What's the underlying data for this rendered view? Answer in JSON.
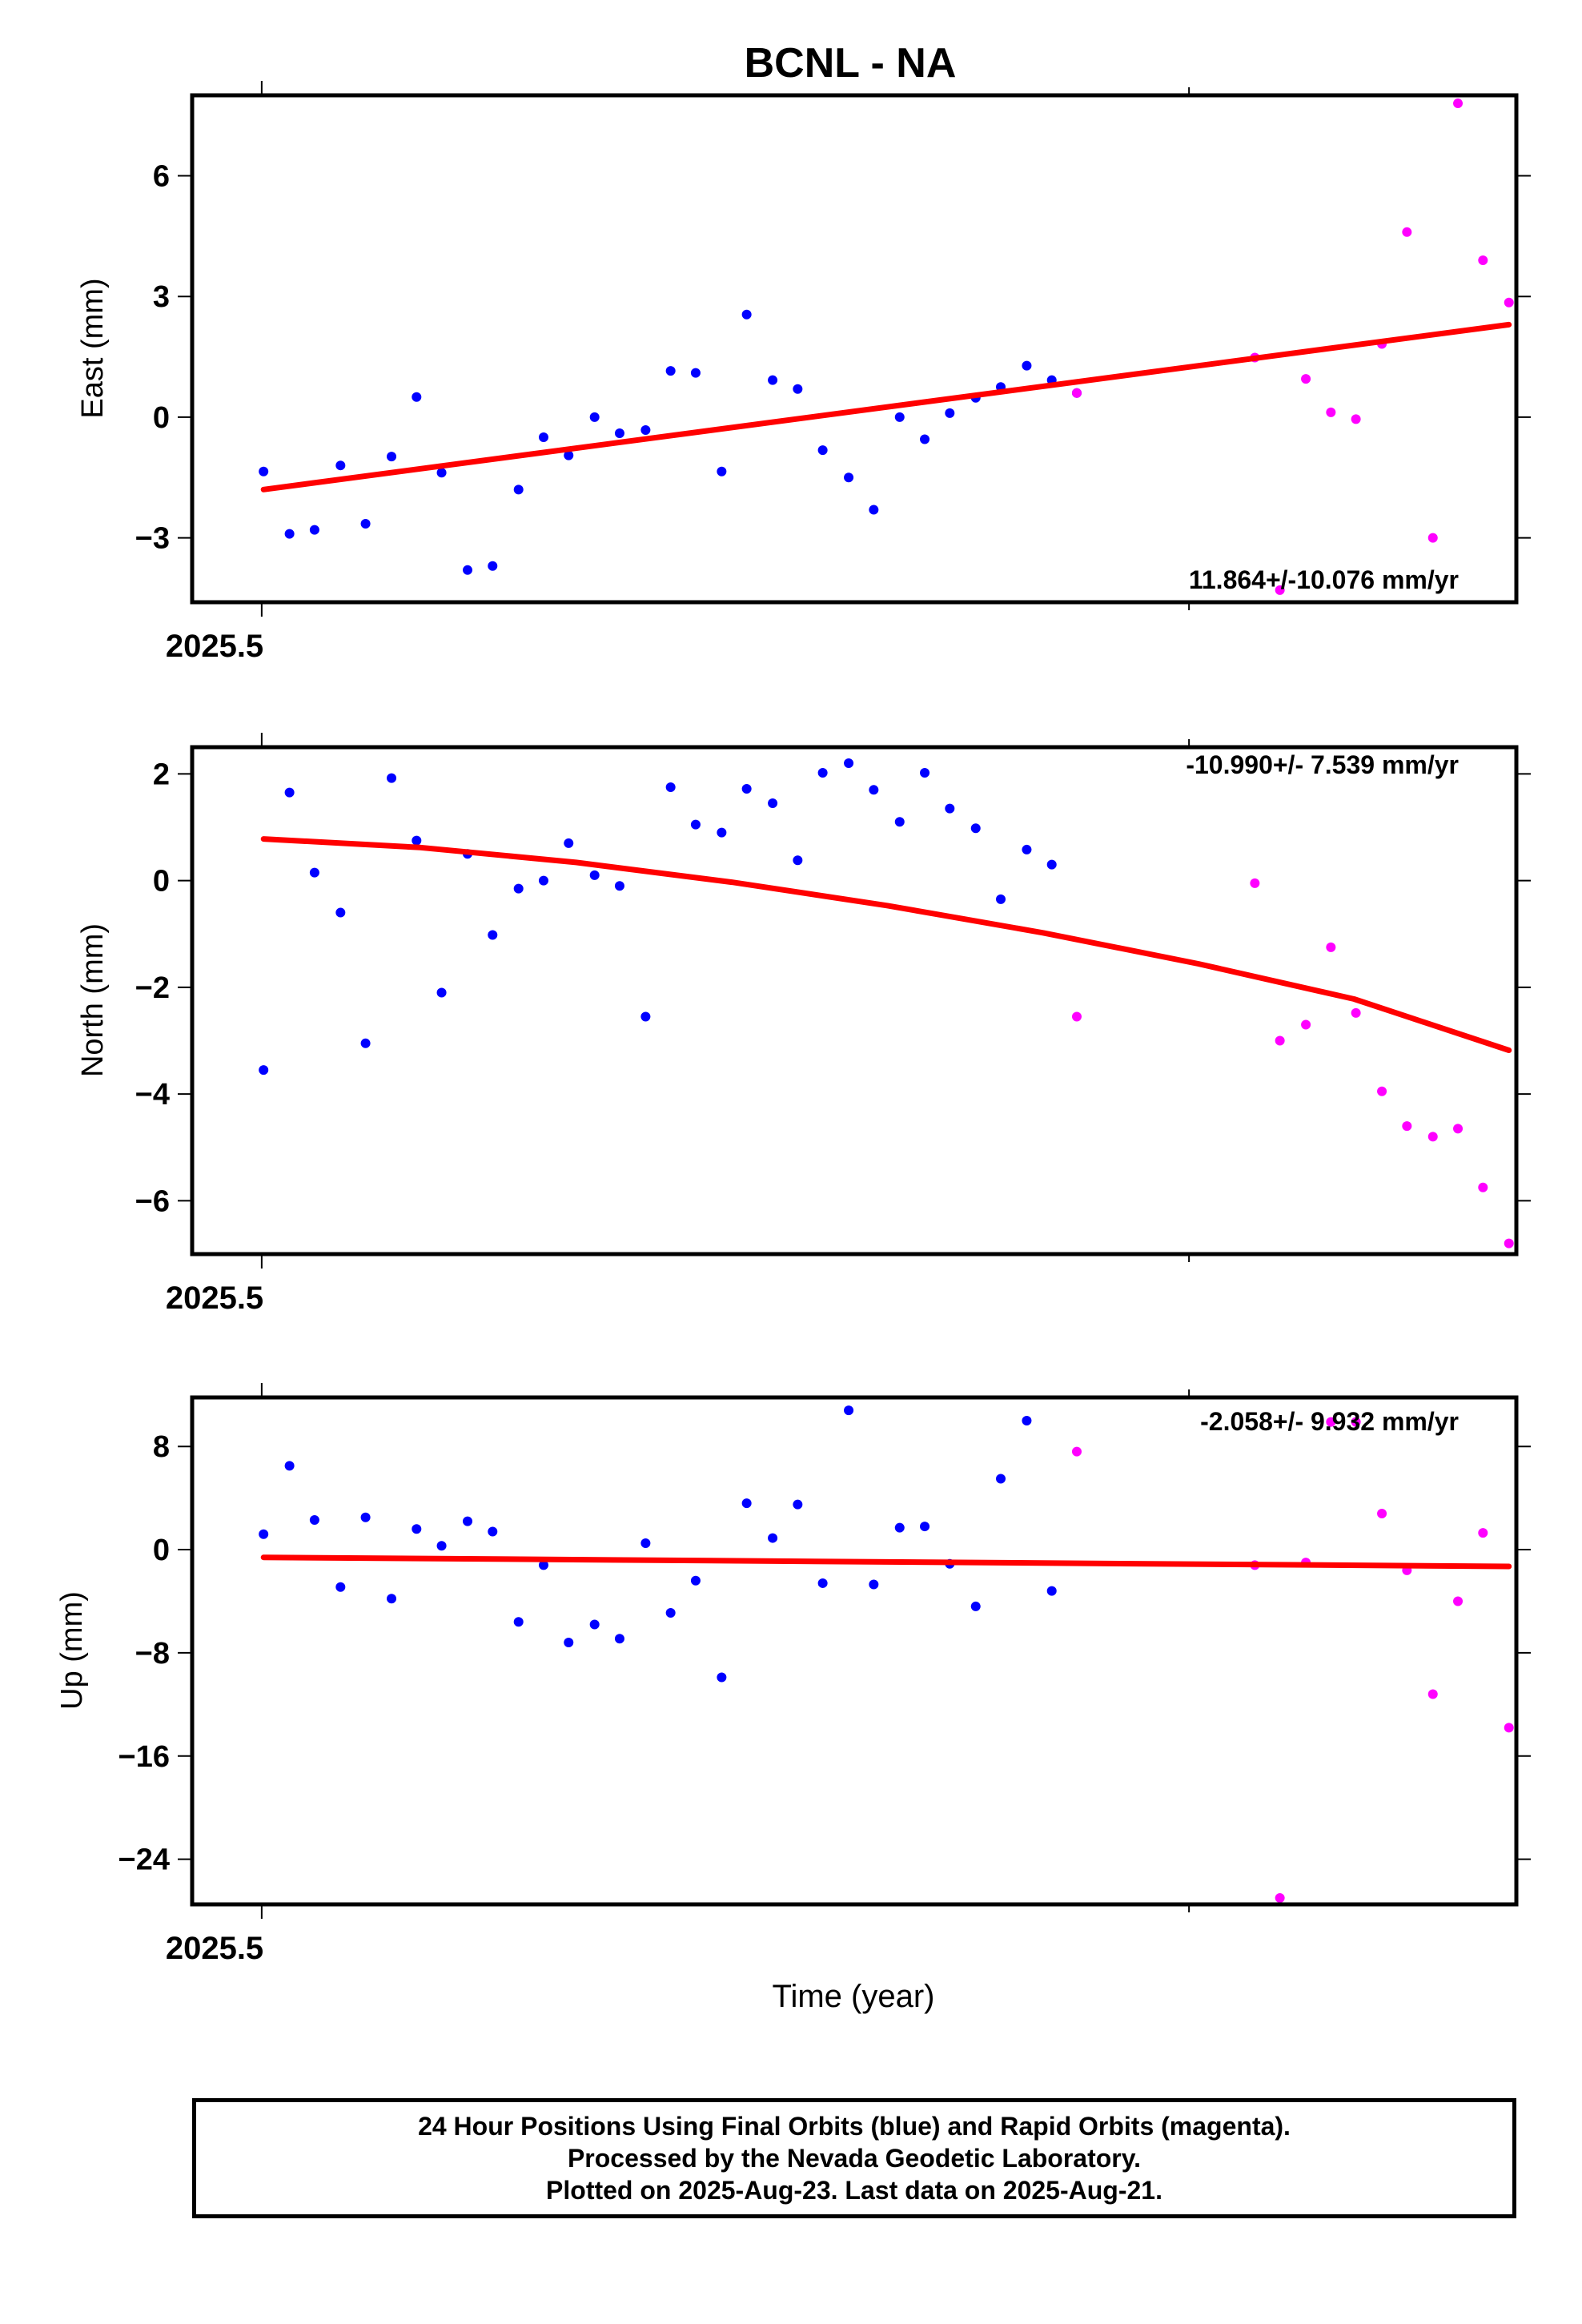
{
  "title": "BCNL - NA",
  "xlabel": "Time (year)",
  "colors": {
    "final": "#0000ff",
    "rapid": "#ff00ff",
    "fit": "#ff0000",
    "frame": "#000000"
  },
  "footer": {
    "line1": "24 Hour Positions Using Final Orbits (blue) and Rapid Orbits (magenta).",
    "line2": "Processed by the Nevada Geodetic Laboratory.",
    "line3": "Plotted on 2025-Aug-23. Last data on 2025-Aug-21."
  },
  "chart_data": [
    {
      "type": "scatter",
      "ylabel": "East (mm)",
      "annotation": "11.864+/-10.076 mm/yr",
      "xlim": [
        2025.4925,
        2025.6353
      ],
      "ylim": [
        -4.6,
        8.0
      ],
      "yticks": [
        -3,
        0,
        3,
        6
      ],
      "ytick_labels": [
        "−3",
        "0",
        "3",
        "6"
      ],
      "xtick_label": "2025.5",
      "series": [
        {
          "name": "Final Orbits",
          "color": "#0000ff",
          "x": [
            2025.5002,
            2025.503,
            2025.5057,
            2025.5085,
            2025.5112,
            2025.514,
            2025.5167,
            2025.5194,
            2025.5222,
            2025.5249,
            2025.5277,
            2025.5304,
            2025.5331,
            2025.5359,
            2025.5386,
            2025.5414,
            2025.5441,
            2025.5468,
            2025.5496,
            2025.5523,
            2025.5551,
            2025.5578,
            2025.5605,
            2025.5633,
            2025.566,
            2025.5688,
            2025.5715,
            2025.5742,
            2025.577,
            2025.5797,
            2025.5825,
            2025.5852,
            2025.5879
          ],
          "y": [
            -1.35,
            -2.9,
            -2.8,
            -1.2,
            -2.65,
            -0.98,
            0.5,
            -1.38,
            -3.8,
            -3.7,
            -1.8,
            -0.5,
            -0.95,
            0.0,
            -0.4,
            -0.32,
            1.15,
            1.1,
            -1.35,
            2.55,
            0.92,
            0.7,
            -0.82,
            -1.5,
            -2.3,
            0.0,
            -0.55,
            0.1,
            0.48,
            0.75,
            1.28,
            0.92,
            0.6
          ]
        },
        {
          "name": "Rapid Orbits",
          "color": "#ff00ff",
          "x": [
            2025.5879,
            2025.6071,
            2025.6098,
            2025.6126,
            2025.6153,
            2025.618,
            2025.6208,
            2025.6235,
            2025.6263,
            2025.629,
            2025.6317,
            2025.6345
          ],
          "y": [
            0.6,
            1.48,
            -4.3,
            0.95,
            0.12,
            -0.05,
            1.82,
            4.6,
            -3.0,
            7.8,
            3.9,
            2.85
          ]
        }
      ],
      "fit": {
        "x": [
          2025.5002,
          2025.6345
        ],
        "y": [
          -1.8,
          2.3
        ]
      }
    },
    {
      "type": "scatter",
      "ylabel": "North (mm)",
      "annotation": "-10.990+/- 7.539 mm/yr",
      "xlim": [
        2025.4925,
        2025.6353
      ],
      "ylim": [
        -7.0,
        2.5
      ],
      "yticks": [
        -6,
        -4,
        -2,
        0,
        2
      ],
      "ytick_labels": [
        "−6",
        "−4",
        "−2",
        "0",
        "2"
      ],
      "xtick_label": "2025.5",
      "series": [
        {
          "name": "Final Orbits",
          "color": "#0000ff",
          "x": [
            2025.5002,
            2025.503,
            2025.5057,
            2025.5085,
            2025.5112,
            2025.514,
            2025.5167,
            2025.5194,
            2025.5222,
            2025.5249,
            2025.5277,
            2025.5304,
            2025.5331,
            2025.5359,
            2025.5386,
            2025.5414,
            2025.5441,
            2025.5468,
            2025.5496,
            2025.5523,
            2025.5551,
            2025.5578,
            2025.5605,
            2025.5633,
            2025.566,
            2025.5688,
            2025.5715,
            2025.5742,
            2025.577,
            2025.5797,
            2025.5825,
            2025.5852
          ],
          "y": [
            -3.55,
            1.65,
            0.15,
            -0.6,
            -3.05,
            1.92,
            0.75,
            -2.1,
            0.5,
            -1.02,
            -0.15,
            0.0,
            0.7,
            0.1,
            -0.1,
            -2.55,
            1.75,
            1.05,
            0.9,
            1.72,
            1.45,
            0.38,
            2.02,
            2.2,
            1.7,
            1.1,
            2.02,
            1.35,
            0.98,
            -0.35,
            0.58,
            0.3
          ]
        },
        {
          "name": "Rapid Orbits",
          "color": "#ff00ff",
          "x": [
            2025.5879,
            2025.6071,
            2025.6098,
            2025.6126,
            2025.6153,
            2025.618,
            2025.6208,
            2025.6235,
            2025.6263,
            2025.629,
            2025.6317,
            2025.6345
          ],
          "y": [
            -2.55,
            -0.05,
            -3.0,
            -2.7,
            -1.25,
            -2.48,
            -3.95,
            -4.6,
            -4.8,
            -4.65,
            -5.75,
            -6.8
          ]
        }
      ],
      "fit": {
        "x": [
          2025.5002,
          2025.5171,
          2025.5339,
          2025.5507,
          2025.5675,
          2025.5843,
          2025.601,
          2025.6178,
          2025.6345
        ],
        "y": [
          0.78,
          0.62,
          0.34,
          -0.03,
          -0.47,
          -0.98,
          -1.56,
          -2.22,
          -3.18
        ]
      }
    },
    {
      "type": "scatter",
      "ylabel": "Up (mm)",
      "annotation": "-2.058+/- 9.932 mm/yr",
      "xlim": [
        2025.4925,
        2025.6353
      ],
      "ylim": [
        -27.5,
        11.8
      ],
      "yticks": [
        -24,
        -16,
        -8,
        0,
        8
      ],
      "ytick_labels": [
        "−24",
        "−16",
        "−8",
        "0",
        "8"
      ],
      "xtick_label": "2025.5",
      "series": [
        {
          "name": "Final Orbits",
          "color": "#0000ff",
          "x": [
            2025.5002,
            2025.503,
            2025.5057,
            2025.5085,
            2025.5112,
            2025.514,
            2025.5167,
            2025.5194,
            2025.5222,
            2025.5249,
            2025.5277,
            2025.5304,
            2025.5331,
            2025.5359,
            2025.5386,
            2025.5414,
            2025.5441,
            2025.5468,
            2025.5496,
            2025.5523,
            2025.5551,
            2025.5578,
            2025.5605,
            2025.5633,
            2025.566,
            2025.5688,
            2025.5715,
            2025.5742,
            2025.577,
            2025.5797,
            2025.5825,
            2025.5852
          ],
          "y": [
            1.2,
            6.5,
            2.3,
            -2.9,
            2.5,
            -3.8,
            1.6,
            0.3,
            2.2,
            1.4,
            -5.6,
            -1.2,
            -7.2,
            -5.8,
            -6.9,
            0.5,
            -4.9,
            -2.4,
            -9.9,
            3.6,
            0.9,
            3.5,
            -2.6,
            10.8,
            -2.7,
            1.7,
            1.8,
            -1.1,
            -4.4,
            5.5,
            10.0,
            -3.2
          ]
        },
        {
          "name": "Rapid Orbits",
          "color": "#ff00ff",
          "x": [
            2025.5879,
            2025.6071,
            2025.6098,
            2025.6126,
            2025.6153,
            2025.618,
            2025.6208,
            2025.6235,
            2025.6263,
            2025.629,
            2025.6317,
            2025.6345
          ],
          "y": [
            7.6,
            -1.2,
            -27.0,
            -1.0,
            9.9,
            9.9,
            2.8,
            -1.6,
            -11.2,
            -4.0,
            1.3,
            -13.8
          ]
        }
      ],
      "fit": {
        "x": [
          2025.5002,
          2025.6345
        ],
        "y": [
          -0.6,
          -1.3
        ]
      }
    }
  ]
}
